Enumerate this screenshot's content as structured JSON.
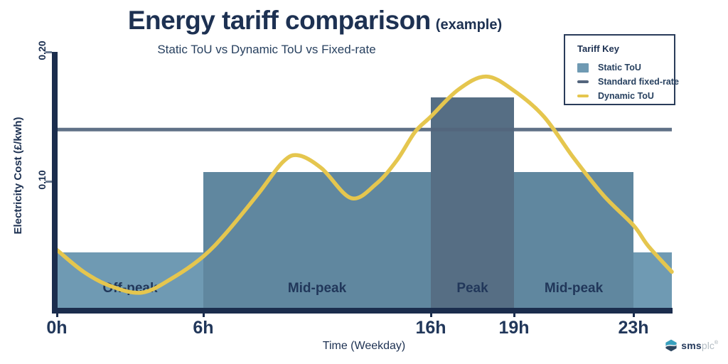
{
  "title": {
    "main": "Energy tariff comparison",
    "suffix": "(example)"
  },
  "legend": {
    "title": "Tariff Key",
    "items": [
      {
        "label": "Static ToU",
        "swatch": "square",
        "color_key": "off_peak"
      },
      {
        "label": "Standard fixed-rate",
        "swatch": "line",
        "color_key": "fixed_rate"
      },
      {
        "label": "Dynamic ToU",
        "swatch": "line",
        "color_key": "dynamic"
      }
    ]
  },
  "chart_data": {
    "type": "mixed",
    "title": "Energy tariff comparison (example)",
    "subtitle": "Static ToU vs Dynamic ToU vs Fixed-rate",
    "xlabel": "Time (Weekday)",
    "ylabel": "Electricity Cost (£/kwh)",
    "unit": "£/kwh",
    "xlim_hours": [
      0,
      25.6
    ],
    "ylim": [
      0,
      0.21
    ],
    "grid": false,
    "legend_position": "top-right",
    "x_ticks": [
      {
        "label": "0h",
        "hour": 0
      },
      {
        "label": "6h",
        "hour": 6
      },
      {
        "label": "16h",
        "hour": 16
      },
      {
        "label": "19h",
        "hour": 19
      },
      {
        "label": "23h",
        "hour": 23
      }
    ],
    "y_ticks": [
      {
        "label": "0.20",
        "value": 0.2
      },
      {
        "label": "0.10",
        "value": 0.1
      }
    ],
    "series": [
      {
        "name": "Static ToU",
        "type": "bar",
        "segments": [
          {
            "label": "Off-peak",
            "band": "off_peak",
            "start_hour": 0,
            "end_hour": 6,
            "value": 0.045
          },
          {
            "label": "Mid-peak",
            "band": "mid_peak",
            "start_hour": 6,
            "end_hour": 16,
            "value": 0.107
          },
          {
            "label": "Peak",
            "band": "peak",
            "start_hour": 16,
            "end_hour": 19,
            "value": 0.165
          },
          {
            "label": "Mid-peak",
            "band": "mid_peak",
            "start_hour": 19,
            "end_hour": 23,
            "value": 0.107
          },
          {
            "label": "",
            "band": "off_peak",
            "start_hour": 23,
            "end_hour": 25.6,
            "value": 0.045
          }
        ]
      },
      {
        "name": "Standard fixed-rate",
        "type": "hline",
        "value": 0.14
      },
      {
        "name": "Dynamic ToU",
        "type": "curve",
        "points": [
          [
            0,
            0.047
          ],
          [
            1.1,
            0.03
          ],
          [
            2.2,
            0.019
          ],
          [
            3.5,
            0.014
          ],
          [
            4.8,
            0.026
          ],
          [
            6,
            0.042
          ],
          [
            7,
            0.06
          ],
          [
            8.4,
            0.09
          ],
          [
            9.5,
            0.115
          ],
          [
            10.2,
            0.12
          ],
          [
            11.2,
            0.11
          ],
          [
            12.5,
            0.087
          ],
          [
            13.6,
            0.098
          ],
          [
            14.5,
            0.116
          ],
          [
            15.3,
            0.138
          ],
          [
            16,
            0.15
          ],
          [
            17,
            0.171
          ],
          [
            18,
            0.181
          ],
          [
            19,
            0.17
          ],
          [
            20,
            0.15
          ],
          [
            21,
            0.118
          ],
          [
            22,
            0.089
          ],
          [
            23,
            0.066
          ],
          [
            24,
            0.05
          ],
          [
            25.6,
            0.03
          ]
        ]
      }
    ],
    "colors": {
      "off_peak": "#6f9ab3",
      "mid_peak": "#60879f",
      "peak": "#566e84",
      "fixed_rate": "#53657d",
      "dynamic": "#e5c64e",
      "axis": "#1b2d4d",
      "text": "#1d3152"
    }
  },
  "logo": {
    "name_bold": "sms",
    "name_light": "plc",
    "registered": "®"
  }
}
